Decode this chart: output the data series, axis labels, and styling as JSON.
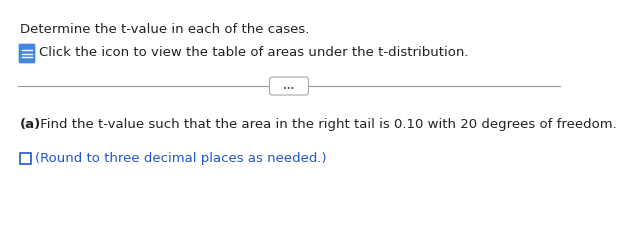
{
  "line1": "Determine the t-value in each of the cases.",
  "line2": "Click the icon to view the table of areas under the t-distribution.",
  "divider_dots": "...",
  "part_a_bold": "(a)",
  "part_a_text": " Find the t-value such that the area in the right tail is 0.10 with 20 degrees of freedom.",
  "round_text": "(Round to three decimal places as needed.)",
  "bg_color": "#ffffff",
  "text_color_black": "#222222",
  "text_color_blue": "#2255cc",
  "icon_color": "#4488dd",
  "icon_edge": "#ffffff",
  "line_color": "#999999",
  "btn_edge": "#aaaaaa",
  "btn_text_color": "#555555",
  "font_size_main": 9.5,
  "font_size_round": 9.5,
  "font_size_dots": 7.0
}
